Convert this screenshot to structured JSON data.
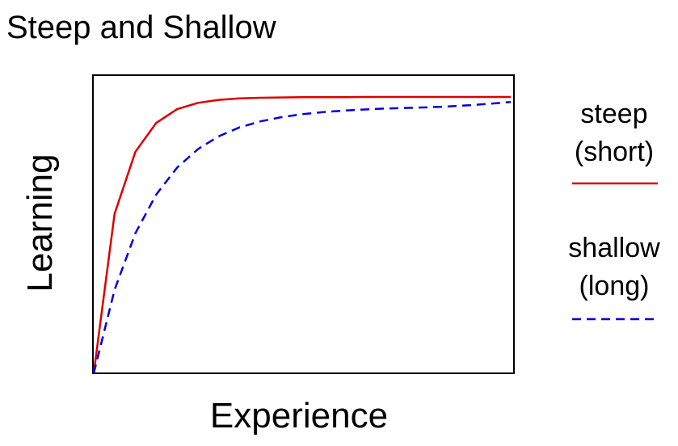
{
  "chart_data": {
    "type": "line",
    "title": "Steep and Shallow",
    "xlabel": "Experience",
    "ylabel": "Learning",
    "xlim": [
      0,
      1
    ],
    "ylim": [
      0,
      1
    ],
    "grid": false,
    "axis_ticks": false,
    "legend_placement": "right",
    "x": [
      0,
      0.05,
      0.1,
      0.15,
      0.2,
      0.25,
      0.3,
      0.35,
      0.4,
      0.45,
      0.5,
      0.55,
      0.6,
      0.65,
      0.7,
      0.75,
      0.8,
      0.85,
      0.9,
      0.95,
      1
    ],
    "series": [
      {
        "name": "steep (short)",
        "legend_lines": [
          "steep",
          "(short)"
        ],
        "color": "#dd0000",
        "line_style": "solid",
        "values": [
          0,
          0.535,
          0.743,
          0.84,
          0.886,
          0.907,
          0.917,
          0.922,
          0.924,
          0.925,
          0.926,
          0.926,
          0.926,
          0.927,
          0.927,
          0.927,
          0.927,
          0.927,
          0.927,
          0.927,
          0.927
        ]
      },
      {
        "name": "shallow (long)",
        "legend_lines": [
          "shallow",
          "(long)"
        ],
        "color": "#0000dd",
        "line_style": "dashed",
        "values": [
          0,
          0.28,
          0.47,
          0.6,
          0.69,
          0.752,
          0.795,
          0.825,
          0.845,
          0.859,
          0.869,
          0.876,
          0.881,
          0.885,
          0.888,
          0.89,
          0.892,
          0.895,
          0.899,
          0.904,
          0.91
        ]
      }
    ]
  }
}
